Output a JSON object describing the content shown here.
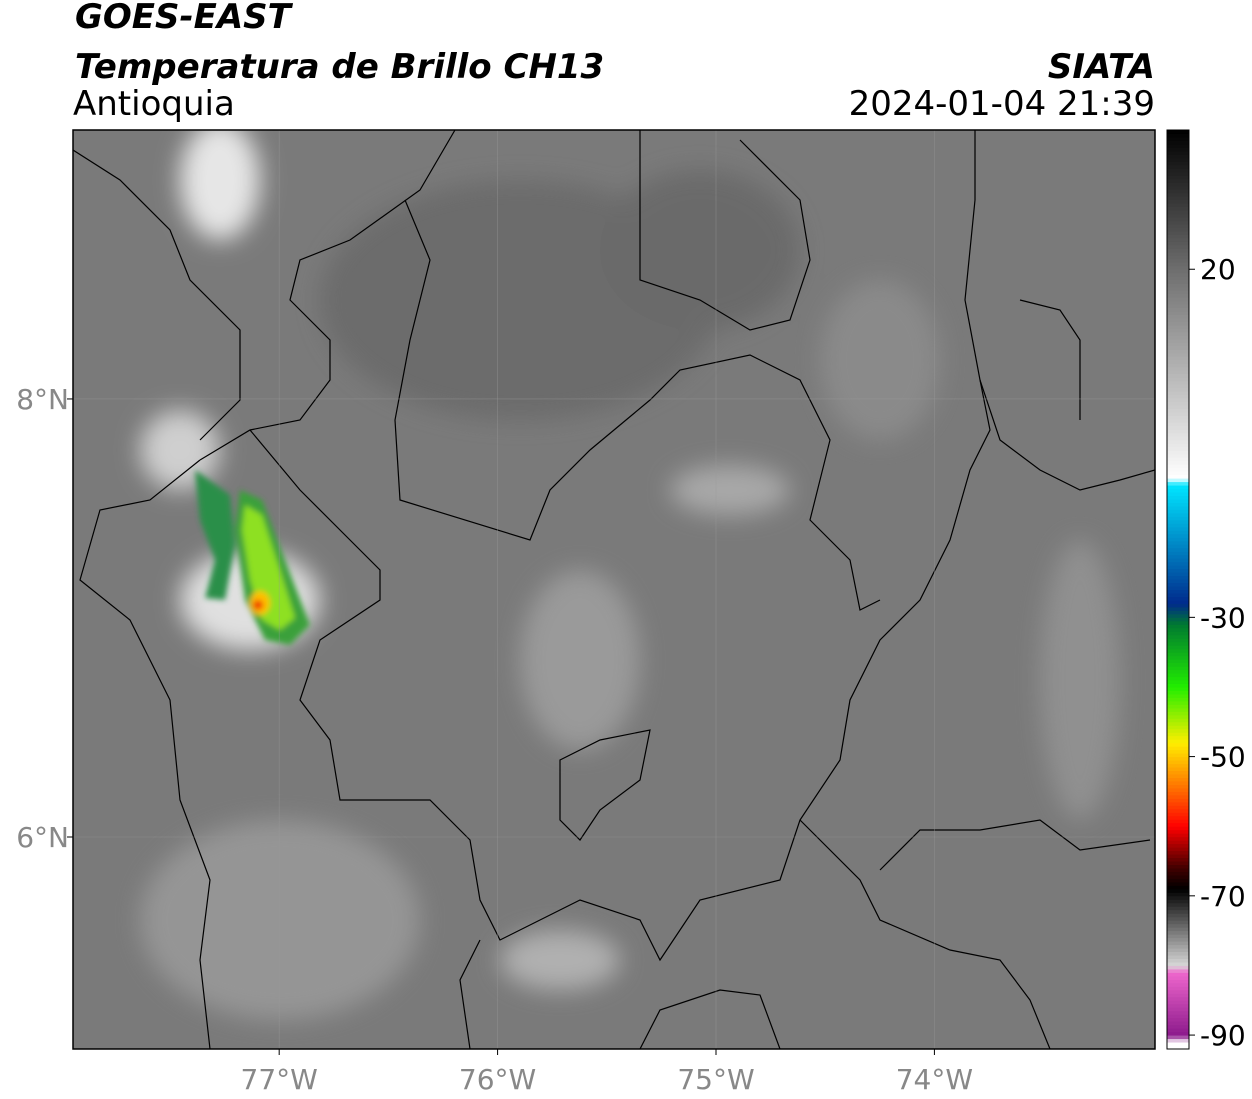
{
  "header": {
    "title": "GOES-EAST",
    "subtitle": "Temperatura de Brillo CH13",
    "region": "Antioquia",
    "agency": "SIATA",
    "timestamp": "2024-01-04 21:39"
  },
  "map": {
    "lonlim": [
      -77.944,
      -72.99
    ],
    "latlim": [
      5.032,
      9.228
    ],
    "lon_ticks": [
      {
        "value": -77,
        "label": "77°W"
      },
      {
        "value": -76,
        "label": "76°W"
      },
      {
        "value": -75,
        "label": "75°W"
      },
      {
        "value": -74,
        "label": "74°W"
      }
    ],
    "lat_ticks": [
      {
        "value": 8,
        "label": "8°N"
      },
      {
        "value": 6,
        "label": "6°N"
      }
    ],
    "grid": true
  },
  "colorbar": {
    "vlim": [
      -92,
      40
    ],
    "ticks": [
      20,
      -30,
      -50,
      -70,
      -90
    ],
    "stops": [
      {
        "value": 40,
        "color": "#000000"
      },
      {
        "value": 20,
        "color": "#6e6e6e"
      },
      {
        "value": -10,
        "color": "#ffffff"
      },
      {
        "value": -11,
        "color": "#00e5ff"
      },
      {
        "value": -28,
        "color": "#002a8c"
      },
      {
        "value": -31,
        "color": "#007a30"
      },
      {
        "value": -40,
        "color": "#22ee00"
      },
      {
        "value": -48,
        "color": "#ffee00"
      },
      {
        "value": -55,
        "color": "#ff6600"
      },
      {
        "value": -60,
        "color": "#ff0000"
      },
      {
        "value": -66,
        "color": "#400000"
      },
      {
        "value": -69,
        "color": "#000000"
      },
      {
        "value": -80,
        "color": "#d8d8d8"
      },
      {
        "value": -81,
        "color": "#ee66cc"
      },
      {
        "value": -90,
        "color": "#8c1a8c"
      },
      {
        "value": -91,
        "color": "#ffffff"
      }
    ]
  }
}
